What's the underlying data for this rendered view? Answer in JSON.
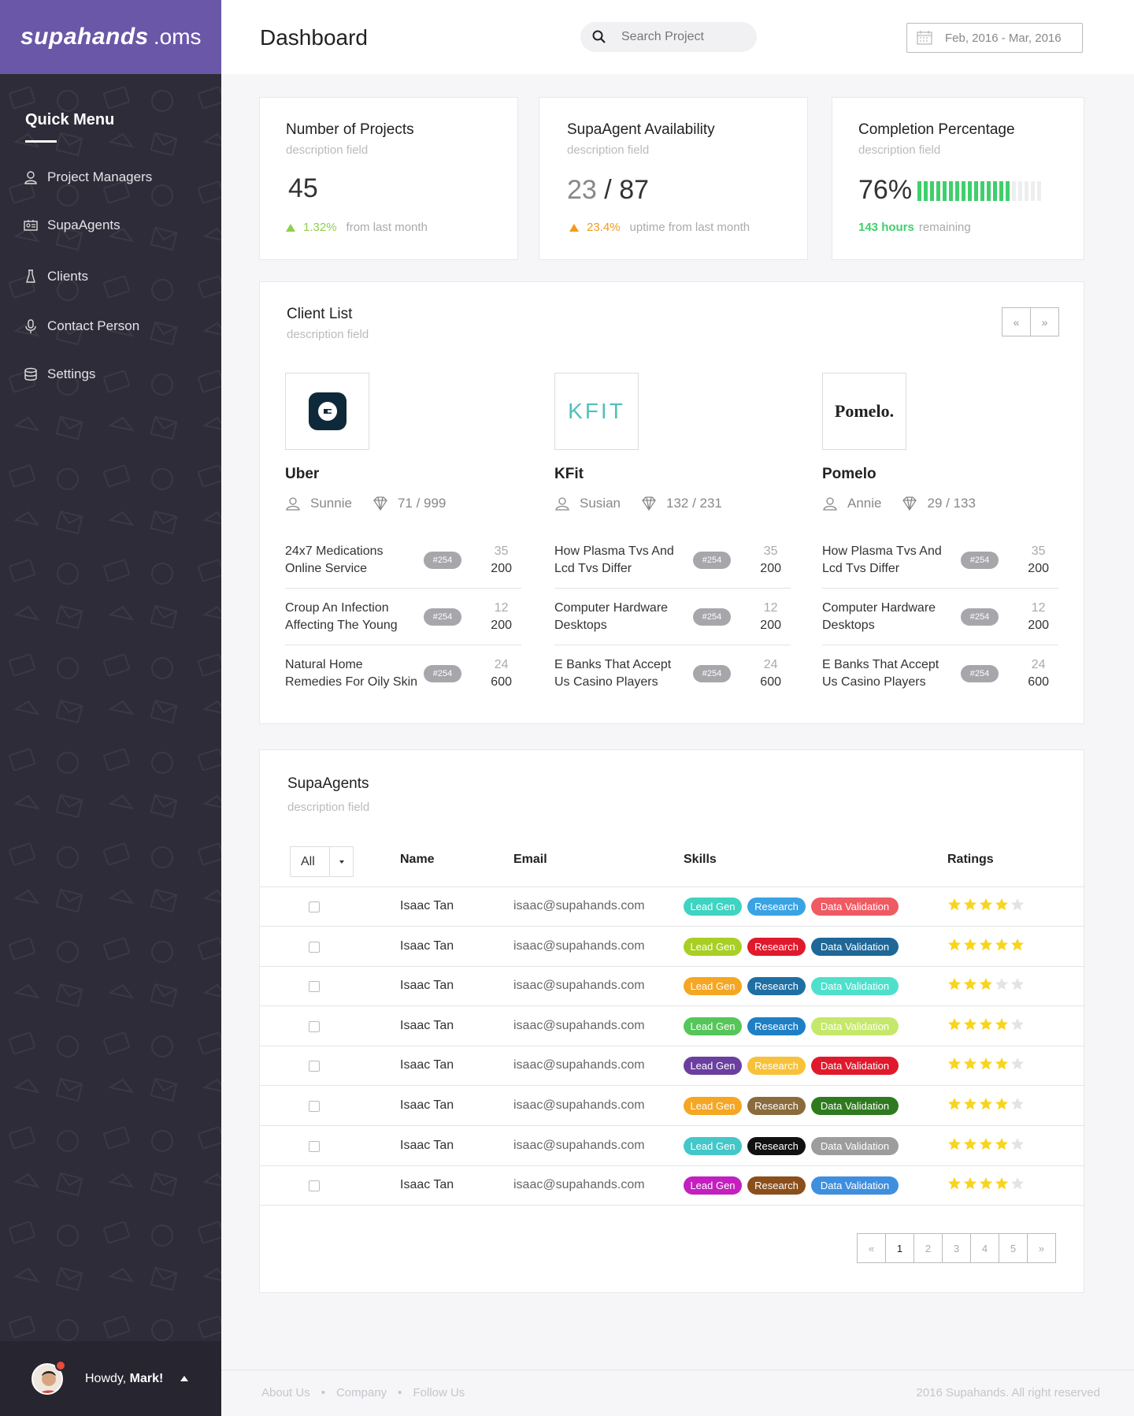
{
  "brand": {
    "logo": "supahands",
    "suffix": ".oms"
  },
  "sidebar": {
    "title": "Quick Menu",
    "items": [
      {
        "label": "Project Managers",
        "icon": "user-icon"
      },
      {
        "label": "SupaAgents",
        "icon": "id-card-icon"
      },
      {
        "label": "Clients",
        "icon": "flask-icon"
      },
      {
        "label": "Contact Person",
        "icon": "microphone-icon"
      },
      {
        "label": "Settings",
        "icon": "database-icon"
      }
    ],
    "footer": {
      "greeting": "Howdy,",
      "user": "Mark!"
    }
  },
  "header": {
    "title": "Dashboard",
    "search_placeholder": "Search Project",
    "date_range": "Feb, 2016 - Mar, 2016"
  },
  "stats": {
    "projects": {
      "title": "Number of Projects",
      "desc": "description field",
      "value": "45",
      "change": "1.32%",
      "change_text": "from last month",
      "color": "#8bd04b"
    },
    "availability": {
      "title": "SupaAgent Availability",
      "desc": "description field",
      "value_a": "23",
      "sep": "/",
      "value_b": "87",
      "change": "23.4%",
      "change_text": "uptime from last month",
      "color": "#f49a1a"
    },
    "completion": {
      "title": "Completion Percentage",
      "desc": "description field",
      "value": "76%",
      "percent": 76,
      "hours": "143 hours",
      "hours_text": "remaining",
      "color": "#3fcf6c"
    }
  },
  "client_list": {
    "title": "Client List",
    "desc": "description field",
    "prev": "«",
    "next": "»",
    "clients": [
      {
        "name": "Uber",
        "contact": "Sunnie",
        "ratio": "71 / 999",
        "logo": "uber-logo",
        "projects": [
          {
            "name": "24x7 Medications Online Service",
            "tag": "#254",
            "top": "35",
            "bottom": "200"
          },
          {
            "name": "Croup An Infection Affecting The Young",
            "tag": "#254",
            "top": "12",
            "bottom": "200"
          },
          {
            "name": "Natural Home Remedies For Oily Skin",
            "tag": "#254",
            "top": "24",
            "bottom": "600"
          }
        ]
      },
      {
        "name": "KFit",
        "contact": "Susian",
        "ratio": "132 / 231",
        "logo": "KFIT",
        "projects": [
          {
            "name": "How Plasma Tvs And Lcd Tvs Differ",
            "tag": "#254",
            "top": "35",
            "bottom": "200"
          },
          {
            "name": "Computer Hardware Desktops",
            "tag": "#254",
            "top": "12",
            "bottom": "200"
          },
          {
            "name": "E Banks That Accept Us Casino Players",
            "tag": "#254",
            "top": "24",
            "bottom": "600"
          }
        ]
      },
      {
        "name": "Pomelo",
        "contact": "Annie",
        "ratio": "29 / 133",
        "logo": "Pomelo.",
        "projects": [
          {
            "name": "How Plasma Tvs And Lcd Tvs Differ",
            "tag": "#254",
            "top": "35",
            "bottom": "200"
          },
          {
            "name": "Computer Hardware Desktops",
            "tag": "#254",
            "top": "12",
            "bottom": "200"
          },
          {
            "name": "E Banks That Accept Us Casino Players",
            "tag": "#254",
            "top": "24",
            "bottom": "600"
          }
        ]
      }
    ]
  },
  "agents": {
    "title": "SupaAgents",
    "desc": "description field",
    "filter": "All",
    "columns": {
      "name": "Name",
      "email": "Email",
      "skills": "Skills",
      "ratings": "Ratings"
    },
    "rows": [
      {
        "name": "Isaac Tan",
        "email": "isaac@supahands.com",
        "skills": [
          {
            "label": "Lead Gen",
            "color": "#3ed4c1"
          },
          {
            "label": "Research",
            "color": "#3aa3e3"
          },
          {
            "label": "Data Validation",
            "color": "#ef5a63"
          }
        ],
        "rating": 4
      },
      {
        "name": "Isaac Tan",
        "email": "isaac@supahands.com",
        "skills": [
          {
            "label": "Lead Gen",
            "color": "#a8cf23"
          },
          {
            "label": "Research",
            "color": "#e0192c"
          },
          {
            "label": "Data Validation",
            "color": "#1f6797"
          }
        ],
        "rating": 5
      },
      {
        "name": "Isaac Tan",
        "email": "isaac@supahands.com",
        "skills": [
          {
            "label": "Lead Gen",
            "color": "#f5a623"
          },
          {
            "label": "Research",
            "color": "#1f6fa3"
          },
          {
            "label": "Data Validation",
            "color": "#4ee0cb"
          }
        ],
        "rating": 3
      },
      {
        "name": "Isaac Tan",
        "email": "isaac@supahands.com",
        "skills": [
          {
            "label": "Lead Gen",
            "color": "#56c65a"
          },
          {
            "label": "Research",
            "color": "#1f7fc4"
          },
          {
            "label": "Data Validation",
            "color": "#c5e86a"
          }
        ],
        "rating": 4
      },
      {
        "name": "Isaac Tan",
        "email": "isaac@supahands.com",
        "skills": [
          {
            "label": "Lead Gen",
            "color": "#6b3fa0"
          },
          {
            "label": "Research",
            "color": "#f7c23a"
          },
          {
            "label": "Data Validation",
            "color": "#e0192c"
          }
        ],
        "rating": 4
      },
      {
        "name": "Isaac Tan",
        "email": "isaac@supahands.com",
        "skills": [
          {
            "label": "Lead Gen",
            "color": "#f5a623"
          },
          {
            "label": "Research",
            "color": "#8a6b3b"
          },
          {
            "label": "Data Validation",
            "color": "#2f7a1f"
          }
        ],
        "rating": 4
      },
      {
        "name": "Isaac Tan",
        "email": "isaac@supahands.com",
        "skills": [
          {
            "label": "Lead Gen",
            "color": "#43c7c9"
          },
          {
            "label": "Research",
            "color": "#111111"
          },
          {
            "label": "Data Validation",
            "color": "#9d9d9d"
          }
        ],
        "rating": 4
      },
      {
        "name": "Isaac Tan",
        "email": "isaac@supahands.com",
        "skills": [
          {
            "label": "Lead Gen",
            "color": "#c41fbf"
          },
          {
            "label": "Research",
            "color": "#8b4f1c"
          },
          {
            "label": "Data Validation",
            "color": "#3f8fdf"
          }
        ],
        "rating": 4
      }
    ],
    "pagination": {
      "prev": "«",
      "pages": [
        "1",
        "2",
        "3",
        "4",
        "5"
      ],
      "active": "1",
      "next": "»"
    }
  },
  "footer": {
    "links": [
      "About Us",
      "Company",
      "Follow Us"
    ],
    "separator": "•",
    "copyright": "2016 Supahands. All right reserved"
  },
  "colors": {
    "brand": "#6a57a8",
    "sidebar": "#2d2c38",
    "star": "#f8d41c",
    "star_empty": "#e3e3e3"
  }
}
